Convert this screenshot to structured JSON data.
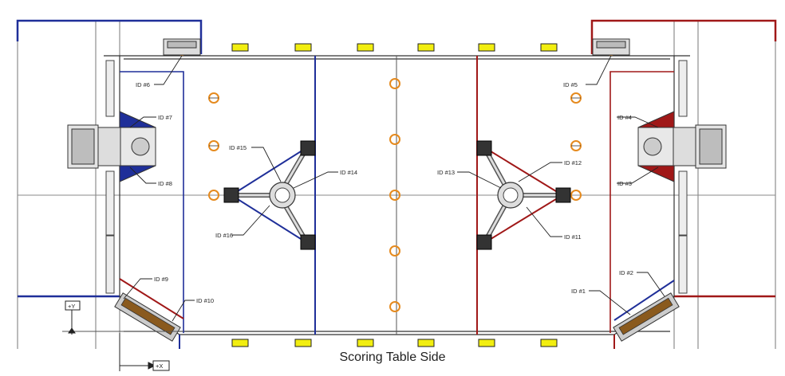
{
  "caption": "Scoring Table Side",
  "axes": {
    "y_label": "+Y",
    "x_label": "+X"
  },
  "ids": {
    "id1": "ID #1",
    "id2": "ID #2",
    "id3": "ID #3",
    "id4": "ID #4",
    "id5": "ID #5",
    "id6": "ID #6",
    "id7": "ID #7",
    "id8": "ID #8",
    "id9": "ID #9",
    "id10": "ID #10",
    "id11": "ID #11",
    "id12": "ID #12",
    "id13": "ID #13",
    "id14": "ID #14",
    "id15": "ID #15",
    "id16": "ID #16"
  },
  "colors": {
    "blue": "#1f2f99",
    "red": "#a01818",
    "yellow": "#f2ee10",
    "orange": "#e58a1e",
    "line": "#333333",
    "gray": "#888888"
  }
}
